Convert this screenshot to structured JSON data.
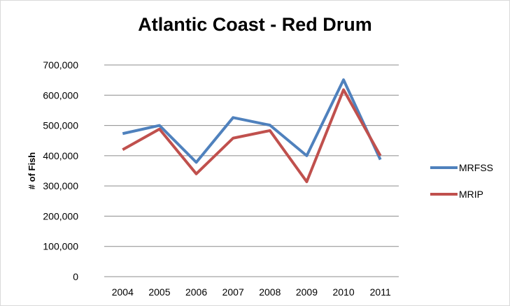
{
  "chart_data": {
    "type": "line",
    "title": "Atlantic Coast - Red Drum",
    "xlabel": "",
    "ylabel": "# of Fish",
    "categories": [
      "2004",
      "2005",
      "2006",
      "2007",
      "2008",
      "2009",
      "2010",
      "2011"
    ],
    "ylim": [
      0,
      700000
    ],
    "yticks": [
      0,
      100000,
      200000,
      300000,
      400000,
      500000,
      600000,
      700000
    ],
    "ytick_labels": [
      "0",
      "100,000",
      "200,000",
      "300,000",
      "400,000",
      "500,000",
      "600,000",
      "700,000"
    ],
    "grid": true,
    "legend": "right",
    "series": [
      {
        "name": "MRFSS",
        "color": "#4f81bd",
        "values": [
          473000,
          500000,
          378000,
          526000,
          501000,
          400000,
          651000,
          387000
        ]
      },
      {
        "name": "MRIP",
        "color": "#c0504d",
        "values": [
          420000,
          488000,
          340000,
          458000,
          483000,
          314000,
          618000,
          400000
        ]
      }
    ]
  }
}
